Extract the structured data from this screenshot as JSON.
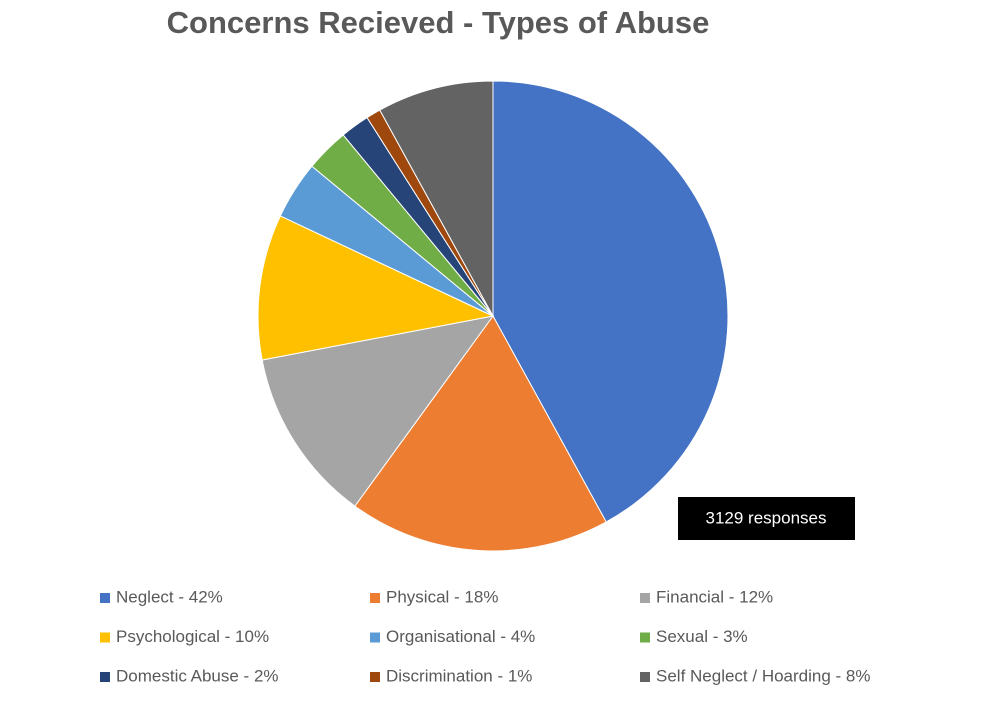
{
  "chart_data": {
    "type": "pie",
    "title": "Concerns Recieved - Types of Abuse",
    "categories": [
      "Neglect - 42%",
      "Physical - 18%",
      "Financial - 12%",
      "Psychological - 10%",
      "Organisational - 4%",
      "Sexual - 3%",
      "Domestic Abuse - 2%",
      "Discrimination - 1%",
      "Self Neglect / Hoarding - 8%"
    ],
    "values": [
      42,
      18,
      12,
      10,
      4,
      3,
      2,
      1,
      8
    ],
    "colors": [
      "#4472c4",
      "#ed7d31",
      "#a5a5a5",
      "#ffc000",
      "#5b9bd5",
      "#70ad47",
      "#264478",
      "#9e480e",
      "#636363"
    ],
    "annotation": "3129 responses"
  }
}
